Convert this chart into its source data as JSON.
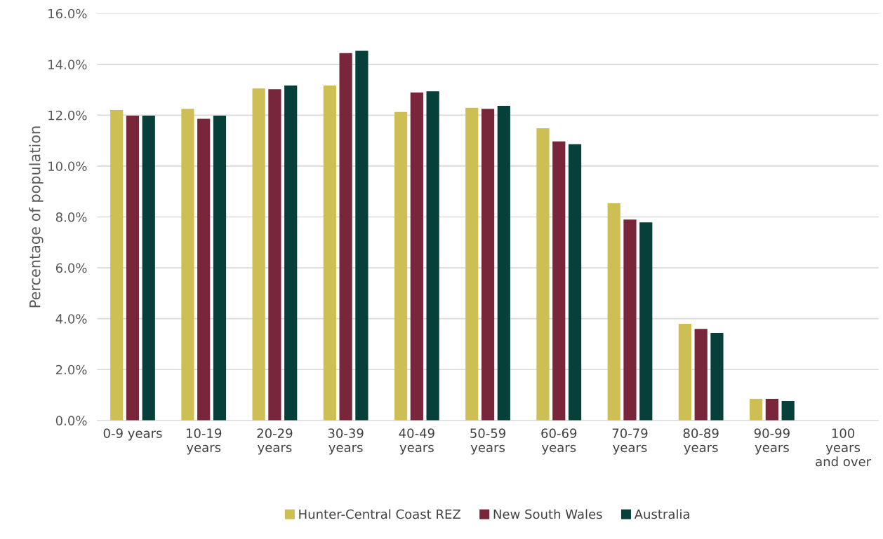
{
  "chart_data": {
    "type": "bar",
    "ylabel": "Percentage of population",
    "categories": [
      "0-9 years",
      "10-19\nyears",
      "20-29\nyears",
      "30-39\nyears",
      "40-49\nyears",
      "50-59\nyears",
      "60-69\nyears",
      "70-79\nyears",
      "80-89\nyears",
      "90-99\nyears",
      "100\nyears\nand over"
    ],
    "series": [
      {
        "name": "Hunter-Central Coast REZ",
        "color": "#cdbf53",
        "values": [
          12.2,
          12.25,
          13.05,
          13.17,
          12.13,
          12.29,
          11.49,
          8.54,
          3.8,
          0.85,
          null
        ]
      },
      {
        "name": "New South Wales",
        "color": "#79263a",
        "values": [
          11.98,
          11.86,
          13.02,
          14.44,
          12.89,
          12.25,
          10.97,
          7.9,
          3.6,
          0.85,
          null
        ]
      },
      {
        "name": "Australia",
        "color": "#07403a",
        "values": [
          11.98,
          11.98,
          13.17,
          14.53,
          12.94,
          12.37,
          10.86,
          7.79,
          3.44,
          0.77,
          null
        ]
      }
    ],
    "ylim": [
      0,
      16
    ],
    "yticks": [
      {
        "value": 0,
        "label": "0.0%"
      },
      {
        "value": 2,
        "label": "2.0%"
      },
      {
        "value": 4,
        "label": "4.0%"
      },
      {
        "value": 6,
        "label": "6.0%"
      },
      {
        "value": 8,
        "label": "8.0%"
      },
      {
        "value": 10,
        "label": "10.0%"
      },
      {
        "value": 12,
        "label": "12.0%"
      },
      {
        "value": 14,
        "label": "14.0%"
      },
      {
        "value": 16,
        "label": "16.0%"
      }
    ],
    "grid": "y",
    "legend": "bottom"
  }
}
